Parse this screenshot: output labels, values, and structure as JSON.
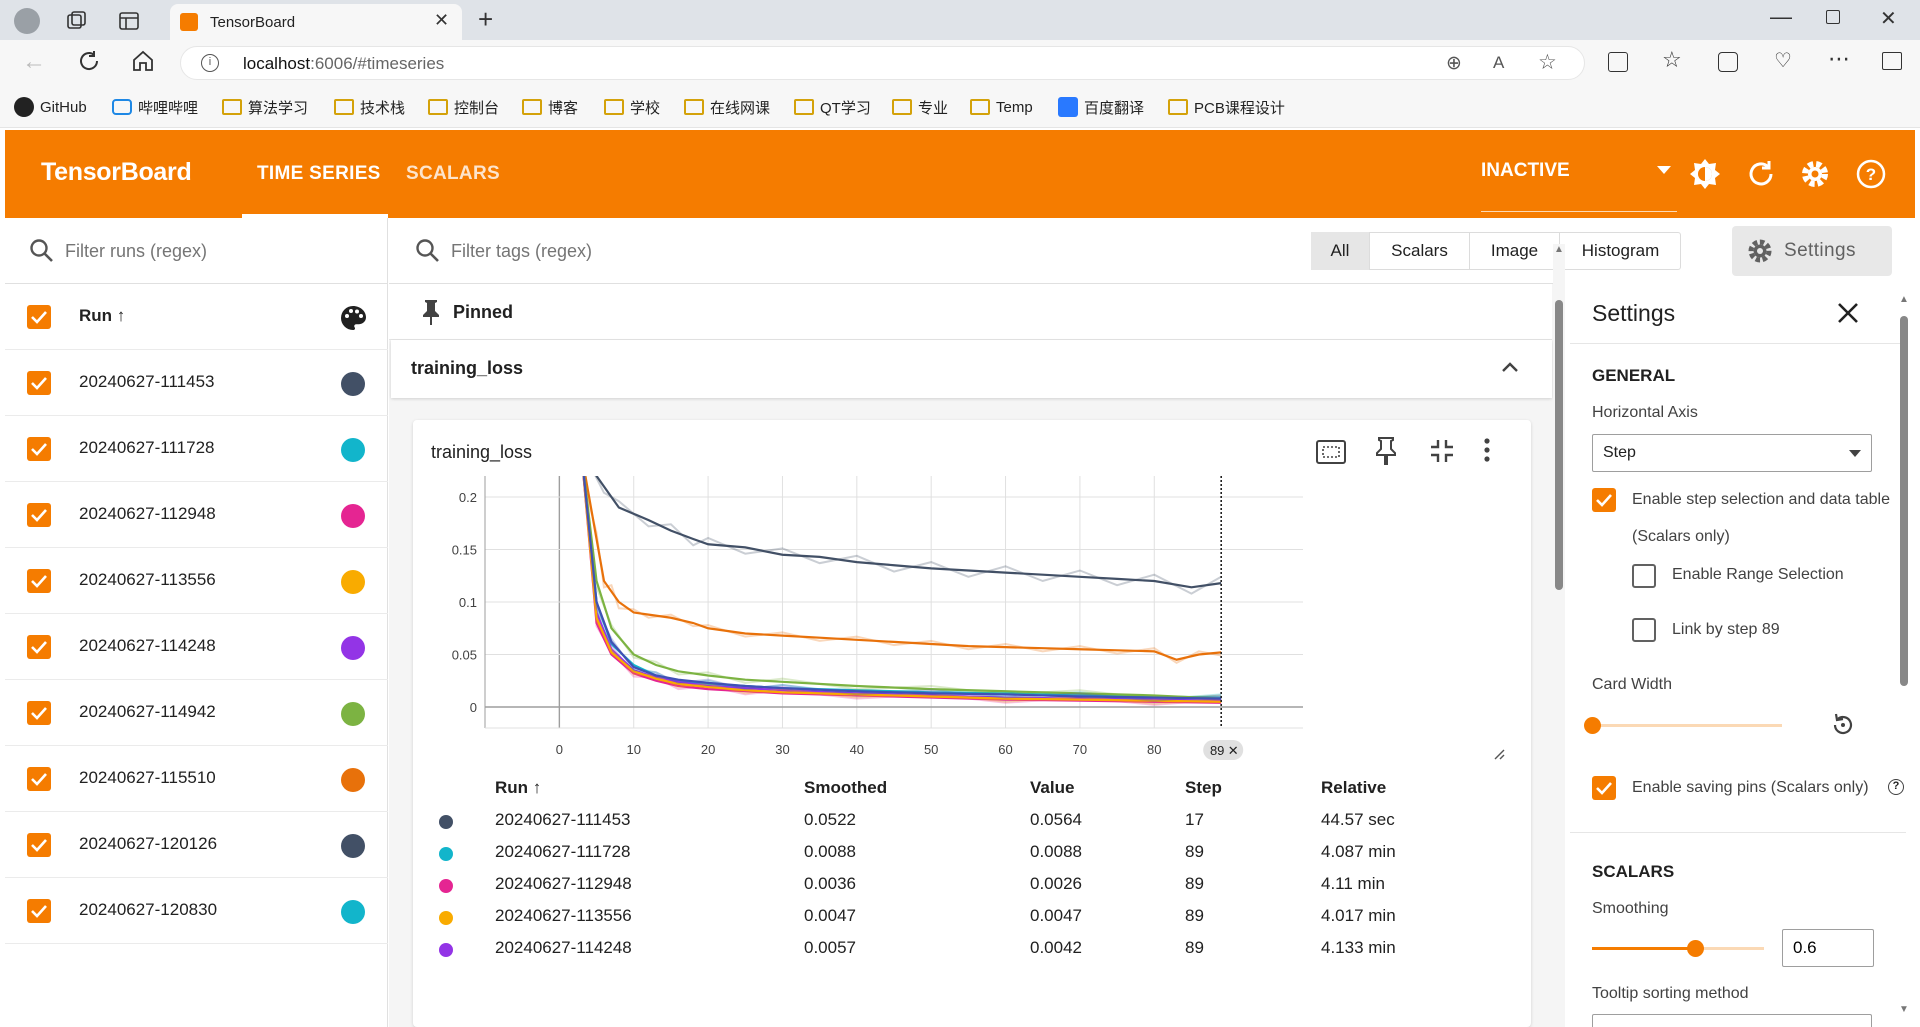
{
  "browser": {
    "tab_title": "TensorBoard",
    "url_host": "localhost",
    "url_rest": ":6006/#timeseries",
    "bookmarks": [
      {
        "label": "GitHub",
        "icon": "github-icon"
      },
      {
        "label": "哔哩哔哩",
        "icon": "bilibili-icon"
      },
      {
        "label": "算法学习",
        "icon": "folder-icon"
      },
      {
        "label": "技术栈",
        "icon": "folder-icon"
      },
      {
        "label": "控制台",
        "icon": "folder-icon"
      },
      {
        "label": "博客",
        "icon": "folder-icon"
      },
      {
        "label": "学校",
        "icon": "folder-icon"
      },
      {
        "label": "在线网课",
        "icon": "folder-icon"
      },
      {
        "label": "QT学习",
        "icon": "folder-icon"
      },
      {
        "label": "专业",
        "icon": "folder-icon"
      },
      {
        "label": "Temp",
        "icon": "folder-icon"
      },
      {
        "label": "百度翻译",
        "icon": "translate-icon"
      },
      {
        "label": "PCB课程设计",
        "icon": "folder-icon"
      }
    ]
  },
  "header": {
    "brand": "TensorBoard",
    "tabs": [
      "TIME SERIES",
      "SCALARS"
    ],
    "active_tab": "TIME SERIES",
    "status": "INACTIVE"
  },
  "runs_panel": {
    "filter_placeholder": "Filter runs (regex)",
    "column_header": "Run ↑",
    "runs": [
      {
        "name": "20240627-111453",
        "color": "#425066"
      },
      {
        "name": "20240627-111728",
        "color": "#12b5cb"
      },
      {
        "name": "20240627-112948",
        "color": "#e52592"
      },
      {
        "name": "20240627-113556",
        "color": "#f9ab00"
      },
      {
        "name": "20240627-114248",
        "color": "#9334e6"
      },
      {
        "name": "20240627-114942",
        "color": "#7cb342"
      },
      {
        "name": "20240627-115510",
        "color": "#e8710a"
      },
      {
        "name": "20240627-120126",
        "color": "#425066"
      },
      {
        "name": "20240627-120830",
        "color": "#12b5cb"
      }
    ]
  },
  "tags": {
    "filter_placeholder": "Filter tags (regex)",
    "filter_pills": [
      "All",
      "Scalars",
      "Image",
      "Histogram"
    ],
    "active_pill": "All",
    "settings_button": "Settings",
    "pinned_label": "Pinned",
    "group_title": "training_loss"
  },
  "card": {
    "title": "training_loss",
    "step_marker": "89",
    "table": {
      "headers": [
        "Run ↑",
        "Smoothed",
        "Value",
        "Step",
        "Relative"
      ],
      "rows": [
        {
          "color": "#425066",
          "run": "20240627-111453",
          "smoothed": "0.0522",
          "value": "0.0564",
          "step": "17",
          "relative": "44.57 sec"
        },
        {
          "color": "#12b5cb",
          "run": "20240627-111728",
          "smoothed": "0.0088",
          "value": "0.0088",
          "step": "89",
          "relative": "4.087 min"
        },
        {
          "color": "#e52592",
          "run": "20240627-112948",
          "smoothed": "0.0036",
          "value": "0.0026",
          "step": "89",
          "relative": "4.11 min"
        },
        {
          "color": "#f9ab00",
          "run": "20240627-113556",
          "smoothed": "0.0047",
          "value": "0.0047",
          "step": "89",
          "relative": "4.017 min"
        },
        {
          "color": "#9334e6",
          "run": "20240627-114248",
          "smoothed": "0.0057",
          "value": "0.0042",
          "step": "89",
          "relative": "4.133 min"
        }
      ]
    }
  },
  "chart_data": {
    "type": "line",
    "title": "training_loss",
    "xlabel": "",
    "ylabel": "",
    "xlim": [
      -10,
      100
    ],
    "ylim": [
      -0.02,
      0.22
    ],
    "x_ticks": [
      0,
      10,
      20,
      30,
      40,
      50,
      60,
      70,
      80
    ],
    "y_ticks": [
      0,
      0.05,
      0.1,
      0.15,
      0.2
    ],
    "y_tick_labels": [
      "0",
      "0.05",
      "0.1",
      "0.15",
      "0.2"
    ],
    "step_marker": 89,
    "grid": true,
    "series": [
      {
        "color": "#425066",
        "x": [
          3,
          6,
          8,
          12,
          15,
          18,
          20,
          25,
          30,
          35,
          40,
          45,
          50,
          55,
          60,
          65,
          70,
          75,
          80,
          85,
          89
        ],
        "y": [
          0.24,
          0.21,
          0.19,
          0.178,
          0.168,
          0.16,
          0.155,
          0.152,
          0.145,
          0.143,
          0.138,
          0.135,
          0.132,
          0.13,
          0.128,
          0.126,
          0.124,
          0.122,
          0.12,
          0.114,
          0.118
        ]
      },
      {
        "color": "#e8710a",
        "x": [
          3,
          4,
          5,
          6,
          7,
          8,
          10,
          12,
          15,
          18,
          20,
          25,
          30,
          35,
          40,
          45,
          50,
          55,
          60,
          65,
          70,
          75,
          80,
          83,
          86,
          89
        ],
        "y": [
          0.24,
          0.2,
          0.16,
          0.12,
          0.11,
          0.1,
          0.09,
          0.088,
          0.085,
          0.08,
          0.075,
          0.07,
          0.068,
          0.066,
          0.064,
          0.062,
          0.06,
          0.058,
          0.057,
          0.056,
          0.055,
          0.054,
          0.053,
          0.045,
          0.05,
          0.052
        ]
      },
      {
        "color": "#12b5cb",
        "x": [
          3,
          5,
          7,
          10,
          13,
          16,
          20,
          25,
          30,
          40,
          50,
          60,
          70,
          80,
          89
        ],
        "y": [
          0.24,
          0.1,
          0.06,
          0.04,
          0.03,
          0.025,
          0.022,
          0.02,
          0.018,
          0.016,
          0.014,
          0.013,
          0.011,
          0.01,
          0.009
        ]
      },
      {
        "color": "#7cb342",
        "x": [
          3,
          5,
          7,
          10,
          13,
          16,
          20,
          25,
          30,
          40,
          50,
          60,
          70,
          80,
          89
        ],
        "y": [
          0.24,
          0.12,
          0.075,
          0.05,
          0.04,
          0.034,
          0.03,
          0.026,
          0.024,
          0.02,
          0.017,
          0.015,
          0.013,
          0.011,
          0.008
        ]
      },
      {
        "color": "#9334e6",
        "x": [
          3,
          5,
          7,
          10,
          13,
          16,
          20,
          25,
          30,
          40,
          50,
          60,
          70,
          80,
          89
        ],
        "y": [
          0.24,
          0.09,
          0.055,
          0.035,
          0.028,
          0.024,
          0.02,
          0.018,
          0.016,
          0.013,
          0.011,
          0.009,
          0.008,
          0.007,
          0.006
        ]
      },
      {
        "color": "#e52592",
        "x": [
          3,
          5,
          7,
          10,
          13,
          16,
          20,
          25,
          30,
          40,
          50,
          60,
          70,
          80,
          89
        ],
        "y": [
          0.24,
          0.08,
          0.05,
          0.032,
          0.025,
          0.02,
          0.017,
          0.015,
          0.013,
          0.011,
          0.009,
          0.007,
          0.006,
          0.005,
          0.004
        ]
      },
      {
        "color": "#f9ab00",
        "x": [
          3,
          5,
          7,
          10,
          13,
          16,
          20,
          25,
          30,
          40,
          50,
          60,
          70,
          80,
          89
        ],
        "y": [
          0.24,
          0.085,
          0.052,
          0.034,
          0.027,
          0.022,
          0.019,
          0.016,
          0.014,
          0.012,
          0.01,
          0.008,
          0.007,
          0.006,
          0.005
        ]
      },
      {
        "color": "#3f51b5",
        "x": [
          3,
          5,
          7,
          10,
          13,
          16,
          20,
          25,
          30,
          40,
          50,
          60,
          70,
          80,
          89
        ],
        "y": [
          0.24,
          0.1,
          0.062,
          0.038,
          0.03,
          0.026,
          0.023,
          0.02,
          0.018,
          0.015,
          0.013,
          0.012,
          0.01,
          0.009,
          0.008
        ]
      }
    ]
  },
  "settings_panel": {
    "title": "Settings",
    "general_heading": "GENERAL",
    "horizontal_axis_label": "Horizontal Axis",
    "horizontal_axis_value": "Step",
    "enable_step_selection": "Enable step selection and data table",
    "scalars_only": "(Scalars only)",
    "enable_range_selection": "Enable Range Selection",
    "link_by_step": "Link by step 89",
    "card_width_label": "Card Width",
    "enable_saving_pins": "Enable saving pins (Scalars only)",
    "scalars_heading": "SCALARS",
    "smoothing_label": "Smoothing",
    "smoothing_value": "0.6",
    "smoothing_fraction": 0.6,
    "tooltip_sorting_label": "Tooltip sorting method"
  }
}
